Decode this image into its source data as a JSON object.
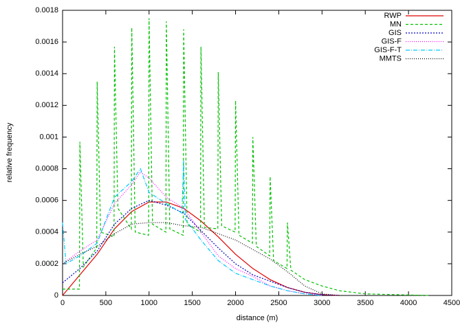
{
  "chart_data": {
    "type": "line",
    "x_label": "distance (m)",
    "y_label": "relative frequency",
    "xlim": [
      0,
      4500
    ],
    "xticks": [
      0,
      500,
      1000,
      1500,
      2000,
      2500,
      3000,
      3500,
      4000,
      4500
    ],
    "ylim": [
      0,
      0.0018
    ],
    "yticks": [
      0,
      0.0002,
      0.0004,
      0.0006,
      0.0008,
      0.001,
      0.0012,
      0.0014,
      0.0016,
      0.0018
    ],
    "legend": "top-right",
    "series": [
      {
        "name": "RWP",
        "color": "#e00000",
        "dash": "",
        "x": [
          0,
          200,
          400,
          600,
          800,
          1000,
          1200,
          1400,
          1600,
          1800,
          2000,
          2200,
          2400,
          2600,
          2800,
          3000,
          3200
        ],
        "values": [
          0,
          0.00013,
          0.00026,
          0.00042,
          0.00053,
          0.00059,
          0.00059,
          0.00055,
          0.00047,
          0.00037,
          0.00026,
          0.00017,
          0.0001,
          5e-05,
          2e-05,
          5e-06,
          0
        ]
      },
      {
        "name": "MN",
        "color": "#00c000",
        "dash": "4,3",
        "x": [
          0,
          195,
          200,
          240,
          395,
          400,
          440,
          595,
          600,
          640,
          795,
          800,
          840,
          995,
          1000,
          1040,
          1195,
          1200,
          1240,
          1395,
          1400,
          1440,
          1595,
          1600,
          1640,
          1795,
          1800,
          1840,
          1995,
          2000,
          2040,
          2195,
          2200,
          2240,
          2395,
          2400,
          2440,
          2595,
          2600,
          2640,
          2800,
          3000,
          3200,
          3500,
          4000,
          4250
        ],
        "values": [
          4e-05,
          4e-05,
          0.00097,
          0.00018,
          0.0003,
          0.00135,
          0.0004,
          0.00037,
          0.00157,
          0.00055,
          0.00042,
          0.00169,
          0.0004,
          0.00038,
          0.00175,
          0.00045,
          0.0004,
          0.00173,
          0.00042,
          0.00038,
          0.00168,
          0.00045,
          0.0004,
          0.00157,
          0.00043,
          0.00042,
          0.00141,
          0.00044,
          0.0004,
          0.00123,
          0.00038,
          0.00033,
          0.001,
          0.00031,
          0.00025,
          0.00075,
          0.00022,
          0.00017,
          0.00046,
          0.00016,
          0.0001,
          6e-05,
          3e-05,
          1e-05,
          3e-06,
          0
        ]
      },
      {
        "name": "GIS",
        "color": "#0000c0",
        "dash": "2,2",
        "x": [
          0,
          200,
          400,
          600,
          800,
          1000,
          1200,
          1400,
          1600,
          1800,
          2000,
          2200,
          2400,
          2600,
          2800,
          3000,
          3200
        ],
        "values": [
          8e-05,
          0.00017,
          0.00028,
          0.00045,
          0.00055,
          0.0006,
          0.00057,
          0.00052,
          0.00041,
          0.0003,
          0.0002,
          0.00013,
          9e-05,
          5e-05,
          2e-05,
          5e-06,
          0
        ]
      },
      {
        "name": "GIS-F",
        "color": "#ff00ff",
        "dash": "1,2",
        "x": [
          0,
          200,
          400,
          600,
          800,
          900,
          1000,
          1200,
          1400,
          1600,
          1800,
          2000,
          2200,
          2400,
          2600,
          2800,
          3000
        ],
        "values": [
          0.0002,
          0.00028,
          0.00035,
          0.00058,
          0.0007,
          0.00078,
          0.00074,
          0.00062,
          0.00055,
          0.0004,
          0.00025,
          0.00017,
          0.00012,
          6e-05,
          3e-05,
          1e-05,
          0
        ]
      },
      {
        "name": "GIS-F-T",
        "color": "#00c8ff",
        "dash": "6,2,1,2",
        "x": [
          0,
          40,
          200,
          400,
          600,
          800,
          900,
          1000,
          1200,
          1380,
          1400,
          1420,
          1600,
          1800,
          2000,
          2200,
          2400,
          2600,
          2800,
          3000
        ],
        "values": [
          0.00046,
          0.0002,
          0.00025,
          0.00033,
          0.00062,
          0.00072,
          0.0008,
          0.00065,
          0.00058,
          0.00052,
          0.00085,
          0.00048,
          0.00035,
          0.00022,
          0.00014,
          0.0001,
          6e-05,
          3e-05,
          1e-05,
          0
        ]
      },
      {
        "name": "MMTS",
        "color": "#000000",
        "dash": "1,2",
        "x": [
          0,
          200,
          400,
          600,
          800,
          1000,
          1200,
          1400,
          1600,
          1800,
          2000,
          2200,
          2400,
          2600,
          2800,
          3000,
          3200
        ],
        "values": [
          0.0002,
          0.00026,
          0.00031,
          0.00039,
          0.00045,
          0.00046,
          0.00046,
          0.00044,
          0.00043,
          0.00039,
          0.00035,
          0.00029,
          0.00023,
          0.00015,
          6e-05,
          1e-05,
          0
        ]
      }
    ]
  }
}
